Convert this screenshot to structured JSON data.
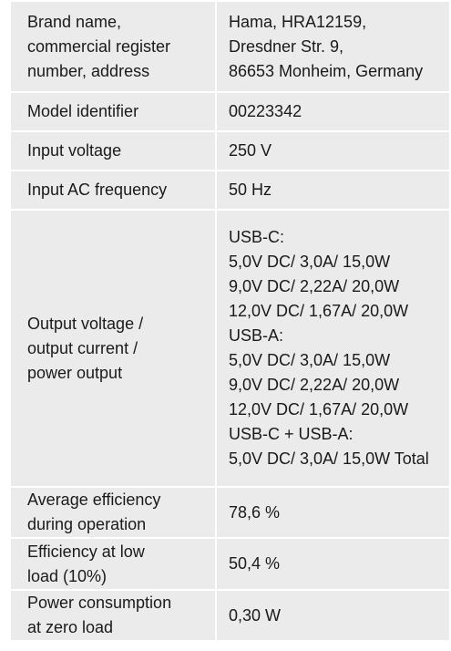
{
  "spec_rows": [
    {
      "label": "Brand name,\ncommercial register\nnumber, address",
      "value": "Hama, HRA12159,\nDresdner Str. 9,\n86653 Monheim, Germany"
    },
    {
      "label": "Model identifier",
      "value": "00223342"
    },
    {
      "label": "Input voltage",
      "value": "250 V"
    },
    {
      "label": "Input AC frequency",
      "value": "50 Hz"
    },
    {
      "label": "Output voltage /\noutput current /\npower output",
      "value": "USB-C:\n5,0V DC/ 3,0A/ 15,0W\n9,0V DC/ 2,22A/ 20,0W\n12,0V DC/ 1,67A/ 20,0W\nUSB-A:\n5,0V DC/ 3,0A/ 15,0W\n9,0V DC/ 2,22A/ 20,0W\n12,0V DC/ 1,67A/ 20,0W\nUSB-C + USB-A:\n5,0V DC/ 3,0A/ 15,0W Total"
    },
    {
      "label": "Average efficiency\nduring operation",
      "value": "78,6 %"
    },
    {
      "label": "Efficiency at low\nload (10%)",
      "value": "50,4 %"
    },
    {
      "label": "Power consumption\nat zero load",
      "value": "0,30 W"
    }
  ]
}
